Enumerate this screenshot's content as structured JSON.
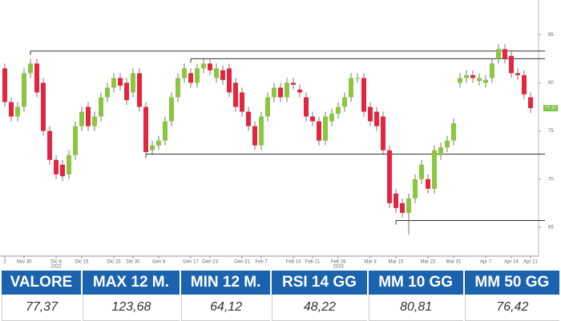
{
  "chart_data": {
    "type": "candlestick",
    "categories": [
      "2",
      null,
      null,
      "Nov 30",
      null,
      null,
      null,
      null,
      "Dic 8",
      null,
      null,
      null,
      "Dic 15",
      null,
      null,
      null,
      null,
      "Dic 23",
      null,
      null,
      "Dic 30",
      null,
      null,
      null,
      "Gen 9",
      null,
      null,
      null,
      null,
      "Gen 17",
      null,
      null,
      "Gen 23",
      null,
      null,
      null,
      null,
      "Gen 31",
      null,
      null,
      "Feb 7",
      null,
      null,
      null,
      null,
      "Feb 14",
      null,
      null,
      "Feb 21",
      null,
      null,
      null,
      "Feb 28",
      null,
      null,
      null,
      null,
      "Mar 8",
      null,
      null,
      null,
      "Mar 15",
      null,
      null,
      null,
      null,
      "Mar 23",
      null,
      null,
      null,
      "Mar 31",
      null,
      null,
      null,
      null,
      "Apr 7",
      null,
      null,
      null,
      "Apr 14",
      null,
      null,
      "Apr 21"
    ],
    "year_labels": [
      null,
      null,
      null,
      null,
      null,
      null,
      null,
      null,
      "2022",
      null,
      null,
      null,
      null,
      null,
      null,
      null,
      null,
      null,
      null,
      null,
      null,
      null,
      null,
      null,
      null,
      null,
      null,
      null,
      null,
      null,
      null,
      null,
      null,
      null,
      null,
      null,
      null,
      null,
      null,
      null,
      null,
      null,
      null,
      null,
      null,
      null,
      null,
      null,
      null,
      null,
      null,
      null,
      "2023",
      null,
      null,
      null,
      null,
      null,
      null,
      null,
      null,
      null,
      null,
      null,
      null,
      null,
      null,
      null,
      null,
      null,
      null,
      null,
      null,
      null,
      null,
      null,
      null,
      null,
      null,
      null,
      null,
      null,
      null
    ],
    "open": [
      81.5,
      78,
      76.5,
      77.5,
      81,
      82,
      80,
      75,
      72,
      71.5,
      70.5,
      72.5,
      75.5,
      77.5,
      75.5,
      76.5,
      78.5,
      79.5,
      80.5,
      80,
      79,
      81,
      77.5,
      73,
      73.5,
      74,
      76,
      78.5,
      80.5,
      81,
      80,
      81.5,
      82,
      80.5,
      81.3,
      81.5,
      80,
      79,
      77,
      75.5,
      73.5,
      76.5,
      78.5,
      79.5,
      78.5,
      80,
      79.3,
      78.5,
      76.5,
      76,
      74,
      76,
      76.8,
      77.5,
      78.5,
      80.5,
      80.5,
      77.5,
      77,
      76.5,
      73,
      68.5,
      67.5,
      66.5,
      68,
      70,
      70,
      69,
      72.5,
      73.3,
      74,
      80,
      80.5,
      80.8,
      80.2,
      80,
      80.5,
      82.5,
      83.5,
      82.8,
      81,
      80.8,
      78.5
    ],
    "high": [
      82,
      78.5,
      78,
      81.5,
      82.5,
      82.5,
      80.5,
      75.5,
      72.5,
      72,
      73,
      76,
      77.5,
      78,
      77,
      79,
      80,
      81,
      81,
      80.5,
      81.5,
      81.5,
      78,
      74,
      74.5,
      76.5,
      79,
      81,
      82,
      81.5,
      82,
      82.5,
      82.5,
      82,
      81.8,
      82,
      80.5,
      79.5,
      77.5,
      76,
      77,
      79,
      80,
      80,
      80.5,
      80.5,
      79.8,
      79,
      77,
      76.5,
      77,
      77.3,
      78,
      79,
      81,
      81,
      81,
      78,
      77.5,
      77,
      73.5,
      69,
      68,
      68.5,
      70.5,
      72,
      70.5,
      73.5,
      73.8,
      74.5,
      76.3,
      81,
      81.3,
      81.3,
      81,
      80.8,
      82.5,
      84,
      84,
      83.3,
      81.5,
      81.3,
      79
    ],
    "low": [
      77.5,
      76,
      76,
      77,
      80.5,
      78.5,
      74.5,
      71.5,
      70,
      69.8,
      70,
      72,
      75,
      75,
      75,
      76,
      78,
      79,
      79.2,
      77.7,
      78.5,
      77,
      72.3,
      72.5,
      73,
      73.5,
      75.5,
      78,
      80,
      79.5,
      79.5,
      81,
      80.8,
      80,
      79.8,
      78.5,
      77,
      76.5,
      75,
      73,
      73,
      76,
      78,
      78,
      78,
      79.3,
      78.5,
      76,
      75.5,
      73.5,
      73.5,
      75.5,
      76.3,
      77,
      78,
      80,
      76.5,
      75.5,
      75,
      72.5,
      67,
      66.5,
      66,
      64.2,
      67.5,
      69.5,
      68.5,
      68.5,
      72,
      72.8,
      73.5,
      79.5,
      80,
      80,
      79.7,
      79.5,
      80,
      82,
      82,
      80.5,
      80.3,
      78.3,
      76.87
    ],
    "close": [
      78,
      76.5,
      77.5,
      81,
      82,
      79,
      75,
      72,
      70.5,
      70.3,
      72.5,
      75.5,
      77,
      75.5,
      76.5,
      78.5,
      79.5,
      80.5,
      79.7,
      78.2,
      81,
      77.5,
      72.8,
      73.5,
      74,
      76,
      78.5,
      80.5,
      81.5,
      80,
      81.5,
      82,
      81.3,
      81.5,
      80.3,
      79,
      77.5,
      77,
      75.5,
      73.5,
      76.5,
      78.5,
      79.5,
      78.5,
      80,
      79.8,
      79,
      76.5,
      76,
      74,
      76.5,
      76.8,
      77.5,
      78.5,
      80.5,
      80.5,
      77,
      76,
      75.5,
      73,
      67.5,
      67,
      66.5,
      68,
      70,
      71.5,
      69,
      73,
      73.3,
      74,
      75.8,
      80.5,
      80.8,
      80.5,
      80.5,
      80.3,
      82,
      83.5,
      82.5,
      81,
      80.8,
      78.8,
      77.37
    ],
    "last_label": "77.37",
    "up_color": "#8cc63f",
    "down_color": "#e3263f",
    "label_color": "#7dc242",
    "levels": [
      {
        "value": 83.3,
        "start": 4
      },
      {
        "value": 82.5,
        "start": 29
      },
      {
        "value": 72.6,
        "start": 22
      },
      {
        "value": 65.7,
        "start": 61
      }
    ],
    "ylim": [
      62.0,
      88.6
    ],
    "yticks": [
      65,
      70,
      75,
      80,
      85
    ]
  },
  "table": {
    "header": [
      "VALORE",
      "MAX 12 M.",
      "MIN 12 M.",
      "RSI 14 GG",
      "MM 10 GG",
      "MM 50 GG"
    ],
    "rows": [
      [
        "77,37",
        "123,68",
        "64,12",
        "48,22",
        "80,81",
        "76,42"
      ]
    ]
  }
}
